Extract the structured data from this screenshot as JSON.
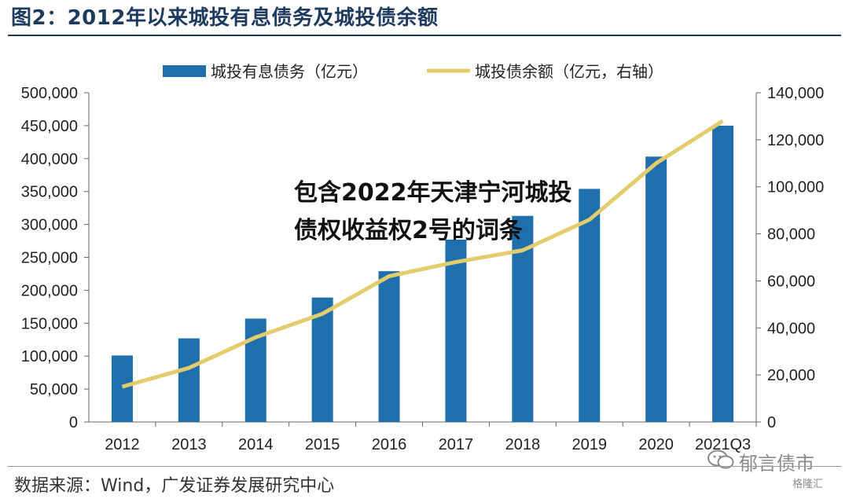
{
  "header": {
    "title": "图2：2012年以来城投有息债务及城投债余额"
  },
  "overlay_text": "包含2022年天津宁河城投债权收益权2号的词条",
  "footer": {
    "source": "数据来源：Wind，广发证券发展研究中心"
  },
  "watermark": {
    "text": "郁言债市",
    "badge": "格隆汇"
  },
  "colors": {
    "bar": "#1f6fad",
    "line": "#e3cc6e",
    "title": "#1f3a5f"
  },
  "chart_data": {
    "type": "bar",
    "categories": [
      "2012",
      "2013",
      "2014",
      "2015",
      "2016",
      "2017",
      "2018",
      "2019",
      "2020",
      "2021Q3"
    ],
    "series": [
      {
        "name": "城投有息债务（亿元）",
        "type": "bar",
        "axis": "left",
        "values": [
          101000,
          127000,
          157000,
          189000,
          229000,
          277000,
          313000,
          354000,
          403000,
          450000
        ]
      },
      {
        "name": "城投债余额（亿元，右轴）",
        "type": "line",
        "axis": "right",
        "values": [
          15000,
          23000,
          36000,
          46000,
          62000,
          68000,
          73000,
          86000,
          110000,
          128000
        ]
      }
    ],
    "ylim_left": [
      0,
      500000
    ],
    "ylim_right": [
      0,
      140000
    ],
    "yticks_left": [
      "0",
      "50,000",
      "100,000",
      "150,000",
      "200,000",
      "250,000",
      "300,000",
      "350,000",
      "400,000",
      "450,000",
      "500,000"
    ],
    "yticks_right": [
      "0",
      "20,000",
      "40,000",
      "60,000",
      "80,000",
      "100,000",
      "120,000",
      "140,000"
    ],
    "legend": [
      "城投有息债务（亿元）",
      "城投债余额（亿元，右轴）"
    ],
    "legend_position": "top-center"
  }
}
